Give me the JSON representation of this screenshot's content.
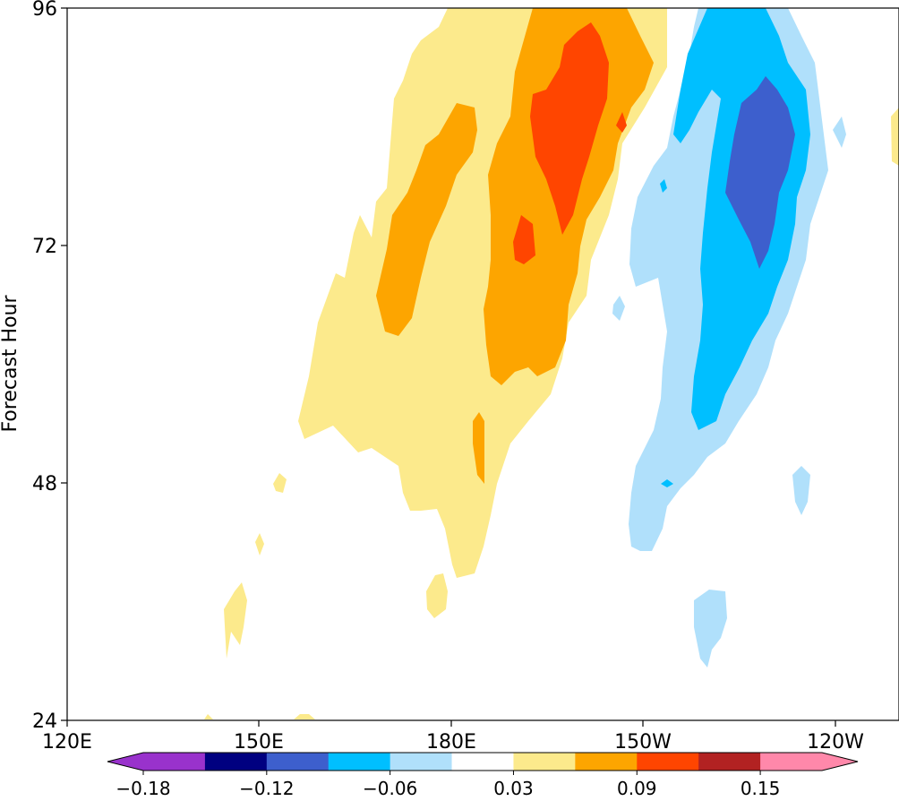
{
  "chart_data": {
    "type": "heatmap",
    "title": "",
    "ylabel": "Forecast Hour",
    "xlabel": "",
    "x_ticks": [
      "120E",
      "150E",
      "180E",
      "150W",
      "120W"
    ],
    "y_ticks": [
      "96",
      "72",
      "48",
      "24"
    ],
    "ylim": [
      24,
      96
    ],
    "colorbar": {
      "levels": [
        -0.18,
        -0.15,
        -0.12,
        -0.09,
        -0.06,
        -0.03,
        0.03,
        0.06,
        0.09,
        0.12,
        0.15,
        0.18
      ],
      "tick_labels": [
        "−0.18",
        "−0.12",
        "−0.06",
        "0.03",
        "0.09",
        "0.15"
      ],
      "colors": [
        "#9932cc",
        "#000080",
        "#3d5fcd",
        "#00bfff",
        "#b0e0fb",
        "#ffffff",
        "#fcea8c",
        "#fda500",
        "#ff4500",
        "#b22222",
        "#ff88aa"
      ],
      "extend": "both"
    },
    "regions": [
      {
        "level": 0.03,
        "description": "positive band from ~150E at hour 30 to ~165W at hour 96"
      },
      {
        "level": 0.06,
        "description": "orange core near 170W-165W, hours 55-96"
      },
      {
        "level": 0.09,
        "description": "red-orange max near 165W, hours 70-95"
      },
      {
        "level": -0.03,
        "description": "negative band from ~155W at hour 35 to ~130W at hour 96"
      },
      {
        "level": -0.06,
        "description": "cyan core near 140W, hours 52-96"
      },
      {
        "level": -0.09,
        "description": "blue min near 135W, hours 70-88"
      }
    ]
  },
  "colors": {
    "pos1": "#fcea8c",
    "pos2": "#fda500",
    "pos3": "#ff4500",
    "neg1": "#b0e0fb",
    "neg2": "#00bfff",
    "neg3": "#3d5fcd"
  }
}
